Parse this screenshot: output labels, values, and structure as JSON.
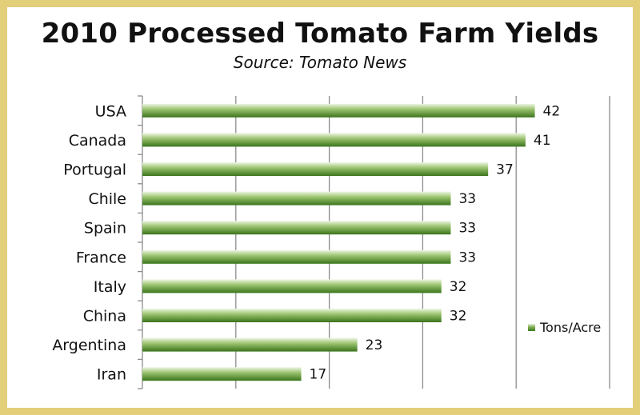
{
  "chart_data": {
    "type": "bar",
    "orientation": "horizontal",
    "title": "2010 Processed Tomato Farm Yields",
    "subtitle": "Source: Tomato News",
    "categories": [
      "USA",
      "Canada",
      "Portugal",
      "Chile",
      "Spain",
      "France",
      "Italy",
      "China",
      "Argentina",
      "Iran"
    ],
    "series": [
      {
        "name": "Tons/Acre",
        "values": [
          42,
          41,
          37,
          33,
          33,
          33,
          32,
          32,
          23,
          17
        ]
      }
    ],
    "xlabel": "",
    "ylabel": "",
    "xlim": [
      0,
      50
    ],
    "grid": true,
    "legend_position": "right",
    "data_labels": true,
    "colors": {
      "bar_dark": "#3f7a1e",
      "bar_light": "#e9f3dd",
      "frame": "#e3cf7a",
      "grid": "#8c8c8c"
    }
  }
}
